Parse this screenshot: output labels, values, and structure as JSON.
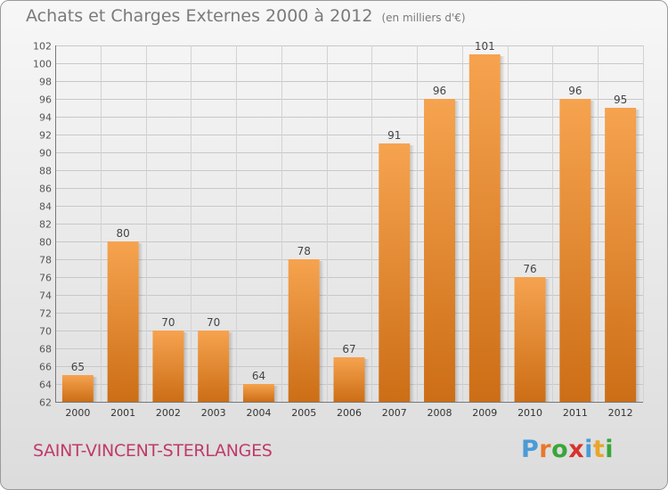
{
  "header": {
    "title": "Achats et Charges Externes 2000 à 2012",
    "subtitle": "(en milliers d'€)"
  },
  "footer": {
    "commune": "SAINT-VINCENT-STERLANGES",
    "logo": "Proxiti"
  },
  "colors": {
    "bar_light": "#f6a34f",
    "bar_dark": "#cc6e16",
    "commune_text": "#c03a6a",
    "logo_letters": [
      "#4a9bd6",
      "#e8782a",
      "#3aa63a",
      "#d8322c",
      "#4a9bd6",
      "#e8a62a",
      "#3aa63a"
    ]
  },
  "chart_data": {
    "type": "bar",
    "categories": [
      "2000",
      "2001",
      "2002",
      "2003",
      "2004",
      "2005",
      "2006",
      "2007",
      "2008",
      "2009",
      "2010",
      "2011",
      "2012"
    ],
    "values": [
      65,
      80,
      70,
      70,
      64,
      78,
      67,
      91,
      96,
      101,
      76,
      96,
      95
    ],
    "ylim": [
      62,
      102
    ],
    "yticks": [
      62,
      64,
      66,
      68,
      70,
      72,
      74,
      76,
      78,
      80,
      82,
      84,
      86,
      88,
      90,
      92,
      94,
      96,
      98,
      100,
      102
    ],
    "grid": true,
    "data_labels": true
  }
}
